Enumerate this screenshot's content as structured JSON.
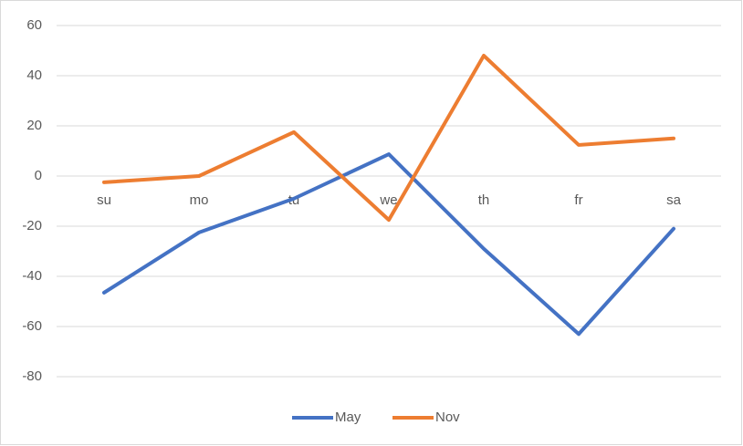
{
  "chart_data": {
    "type": "line",
    "categories": [
      "su",
      "mo",
      "tu",
      "we",
      "th",
      "fr",
      "sa"
    ],
    "series": [
      {
        "name": "May",
        "color": "#4472c4",
        "values": [
          -46.5,
          -22.5,
          -9,
          8.7,
          -29,
          -63,
          -21
        ]
      },
      {
        "name": "Nov",
        "color": "#ed7d31",
        "values": [
          -2.5,
          0,
          17.5,
          -17.5,
          48,
          12.4,
          15
        ]
      }
    ],
    "ylim": [
      -80,
      60
    ],
    "yticks": [
      -80,
      -60,
      -40,
      -20,
      0,
      20,
      40,
      60
    ],
    "grid": true,
    "legend": "bottom"
  }
}
